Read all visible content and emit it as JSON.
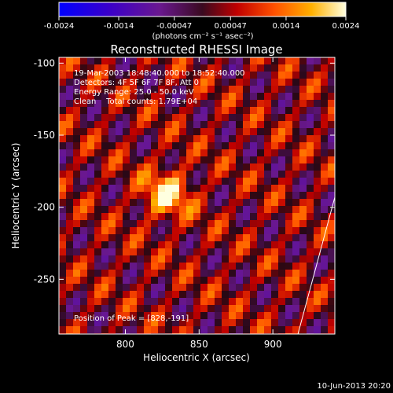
{
  "chart_data": {
    "type": "heatmap",
    "title": "Reconstructed RHESSI Image",
    "xlabel": "Heliocentric X (arcsec)",
    "ylabel": "Heliocentric Y (arcsec)",
    "xlim": [
      755,
      942
    ],
    "ylim": [
      -288,
      -96
    ],
    "x_ticks": [
      800,
      850,
      900
    ],
    "y_ticks": [
      -100,
      -150,
      -200,
      -250
    ],
    "colorbar": {
      "ticks": [
        "-0.0024",
        "-0.0014",
        "-0.00047",
        "0.00047",
        "0.0014",
        "0.0024"
      ],
      "tick_values": [
        -0.0024,
        -0.0014,
        -0.00047,
        0.00047,
        0.0014,
        0.0024
      ],
      "range": [
        -0.0024,
        0.0024
      ],
      "units": "(photons cm⁻² s⁻¹ asec⁻²)"
    },
    "annotations": {
      "time": "19-Mar-2003 18:48:40.000 to 18:52:40.000",
      "detectors": "Detectors: 4F 5F 6F 7F 8F, Att 0",
      "energy": "Energy Range: 25.0 - 50.0 keV",
      "clean": "Clean    Total counts: 1.79E+04",
      "peak": "Position of Peak = [828,-191]"
    },
    "peak": [
      828,
      -191
    ],
    "limb_line": [
      [
        917,
        -288
      ],
      [
        942,
        -193
      ]
    ]
  },
  "footer_date": "10-Jun-2013 20:20"
}
